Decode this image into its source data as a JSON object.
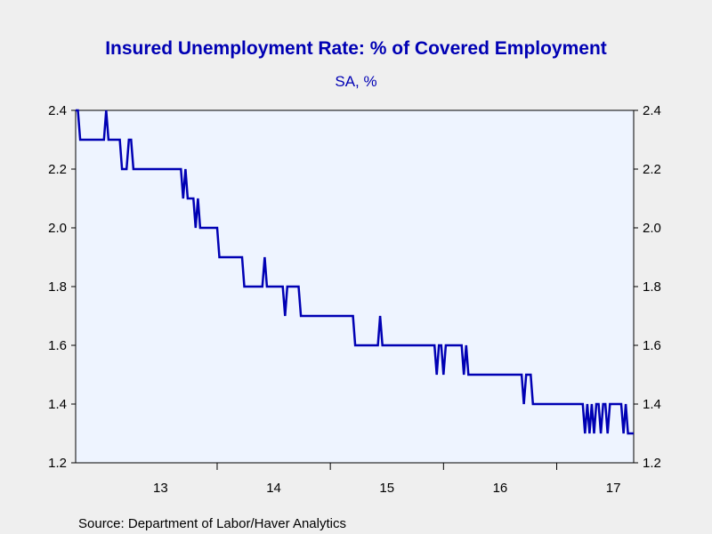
{
  "chart_data": {
    "type": "line",
    "title": "Insured Unemployment Rate: % of Covered Employment",
    "subtitle": "SA, %",
    "source": "Source:  Department of Labor/Haver Analytics",
    "ylim": [
      1.2,
      2.4
    ],
    "y_ticks": [
      "1.2",
      "1.4",
      "1.6",
      "1.8",
      "2.0",
      "2.2",
      "2.4"
    ],
    "y_tick_values": [
      1.2,
      1.4,
      1.6,
      1.8,
      2.0,
      2.2,
      2.4
    ],
    "right_axis": true,
    "xlim": [
      2012.75,
      2017.68
    ],
    "x_ticks": [
      "13",
      "14",
      "15",
      "16",
      "17"
    ],
    "x_tick_centers": [
      2013.5,
      2014.5,
      2015.5,
      2016.5,
      2017.5
    ],
    "year_boundaries": [
      2014,
      2015,
      2016,
      2017
    ],
    "grid": false,
    "colors": {
      "line": "#0000b4",
      "plot_bg": "#eef4ff",
      "title": "#0000b4"
    },
    "series": [
      {
        "points": [
          [
            2012.75,
            2.4
          ],
          [
            2012.77,
            2.4
          ],
          [
            2012.79,
            2.3
          ],
          [
            2013.0,
            2.3
          ],
          [
            2013.02,
            2.4
          ],
          [
            2013.04,
            2.3
          ],
          [
            2013.14,
            2.3
          ],
          [
            2013.16,
            2.2
          ],
          [
            2013.2,
            2.2
          ],
          [
            2013.22,
            2.3
          ],
          [
            2013.24,
            2.3
          ],
          [
            2013.26,
            2.2
          ],
          [
            2013.68,
            2.2
          ],
          [
            2013.7,
            2.1
          ],
          [
            2013.72,
            2.2
          ],
          [
            2013.74,
            2.1
          ],
          [
            2013.79,
            2.1
          ],
          [
            2013.81,
            2.0
          ],
          [
            2013.83,
            2.1
          ],
          [
            2013.85,
            2.0
          ],
          [
            2014.0,
            2.0
          ],
          [
            2014.02,
            1.9
          ],
          [
            2014.22,
            1.9
          ],
          [
            2014.24,
            1.8
          ],
          [
            2014.4,
            1.8
          ],
          [
            2014.42,
            1.9
          ],
          [
            2014.44,
            1.8
          ],
          [
            2014.58,
            1.8
          ],
          [
            2014.6,
            1.7
          ],
          [
            2014.62,
            1.8
          ],
          [
            2014.72,
            1.8
          ],
          [
            2014.74,
            1.7
          ],
          [
            2015.2,
            1.7
          ],
          [
            2015.22,
            1.6
          ],
          [
            2015.42,
            1.6
          ],
          [
            2015.44,
            1.7
          ],
          [
            2015.46,
            1.6
          ],
          [
            2015.92,
            1.6
          ],
          [
            2015.94,
            1.5
          ],
          [
            2015.96,
            1.6
          ],
          [
            2015.98,
            1.6
          ],
          [
            2016.0,
            1.5
          ],
          [
            2016.02,
            1.6
          ],
          [
            2016.16,
            1.6
          ],
          [
            2016.18,
            1.5
          ],
          [
            2016.2,
            1.6
          ],
          [
            2016.22,
            1.5
          ],
          [
            2016.69,
            1.5
          ],
          [
            2016.71,
            1.4
          ],
          [
            2016.73,
            1.5
          ],
          [
            2016.77,
            1.5
          ],
          [
            2016.79,
            1.4
          ],
          [
            2017.23,
            1.4
          ],
          [
            2017.25,
            1.3
          ],
          [
            2017.27,
            1.4
          ],
          [
            2017.29,
            1.3
          ],
          [
            2017.31,
            1.4
          ],
          [
            2017.33,
            1.3
          ],
          [
            2017.35,
            1.4
          ],
          [
            2017.37,
            1.4
          ],
          [
            2017.39,
            1.3
          ],
          [
            2017.41,
            1.4
          ],
          [
            2017.43,
            1.4
          ],
          [
            2017.45,
            1.3
          ],
          [
            2017.47,
            1.4
          ],
          [
            2017.57,
            1.4
          ],
          [
            2017.59,
            1.3
          ],
          [
            2017.61,
            1.4
          ],
          [
            2017.63,
            1.3
          ],
          [
            2017.68,
            1.3
          ]
        ]
      }
    ]
  }
}
